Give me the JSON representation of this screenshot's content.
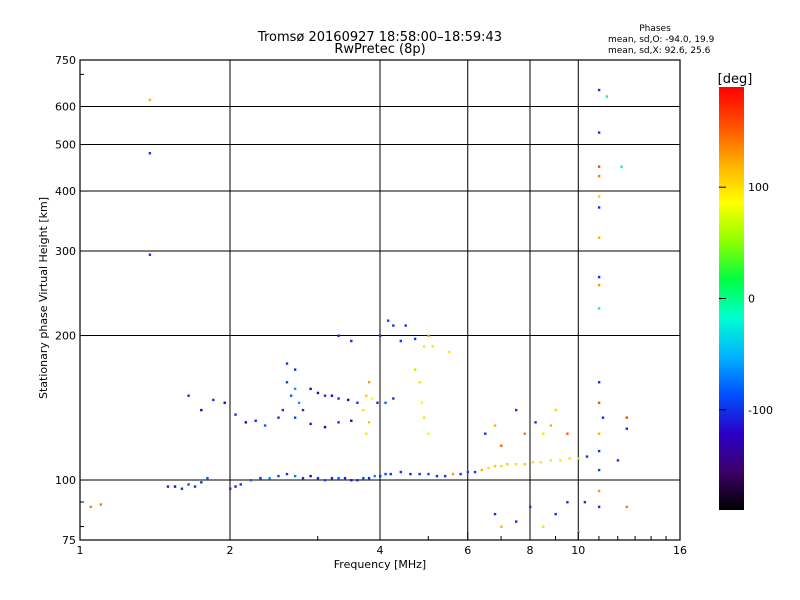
{
  "chart_data": {
    "type": "scatter",
    "title": "Tromsø 20160927 18:58:00–18:59:43",
    "subtitle": "RwPretec (8p)",
    "xlabel": "Frequency [MHz]",
    "ylabel": "Stationary phase Virtual Height [km]",
    "x_scale": "log",
    "y_scale": "log",
    "xlim": [
      1,
      16
    ],
    "ylim": [
      75,
      750
    ],
    "x_ticks": [
      1,
      2,
      4,
      6,
      8,
      10,
      16
    ],
    "y_ticks": [
      75,
      100,
      200,
      300,
      400,
      500,
      600,
      750
    ],
    "grid": true,
    "phase_box": {
      "title": "Phases",
      "line1": "mean, sd,O: -94.0, 19.9",
      "line2": "mean, sd,X:  92.6, 25.6"
    },
    "colorbar": {
      "label": "[deg]",
      "range": [
        -190,
        190
      ],
      "ticks": [
        -100,
        0,
        100
      ],
      "colors": [
        "#000000",
        "#3c0068",
        "#2a00c8",
        "#0050ff",
        "#00b4ff",
        "#00ffd0",
        "#00ff40",
        "#90ff00",
        "#ffff00",
        "#ffb000",
        "#ff5000",
        "#ff0000"
      ]
    },
    "color_by": "phase_deg",
    "series": [
      {
        "x": 1.05,
        "y": 88,
        "phase": 140
      },
      {
        "x": 1.1,
        "y": 89,
        "phase": 140
      },
      {
        "x": 1.38,
        "y": 620,
        "phase": 120
      },
      {
        "x": 1.38,
        "y": 480,
        "phase": -100
      },
      {
        "x": 1.38,
        "y": 295,
        "phase": -100
      },
      {
        "x": 1.5,
        "y": 97,
        "phase": -110
      },
      {
        "x": 1.55,
        "y": 97,
        "phase": -120
      },
      {
        "x": 1.6,
        "y": 96,
        "phase": -100
      },
      {
        "x": 1.65,
        "y": 98,
        "phase": -90
      },
      {
        "x": 1.7,
        "y": 97,
        "phase": -100
      },
      {
        "x": 1.75,
        "y": 99,
        "phase": -100
      },
      {
        "x": 1.8,
        "y": 101,
        "phase": -80
      },
      {
        "x": 1.65,
        "y": 150,
        "phase": -100
      },
      {
        "x": 1.75,
        "y": 140,
        "phase": -130
      },
      {
        "x": 1.85,
        "y": 147,
        "phase": -100
      },
      {
        "x": 1.95,
        "y": 145,
        "phase": -120
      },
      {
        "x": 2.05,
        "y": 137,
        "phase": -100
      },
      {
        "x": 2.15,
        "y": 132,
        "phase": -120
      },
      {
        "x": 2.25,
        "y": 133,
        "phase": -100
      },
      {
        "x": 2.35,
        "y": 130,
        "phase": -80
      },
      {
        "x": 2.5,
        "y": 135,
        "phase": -100
      },
      {
        "x": 2.7,
        "y": 135,
        "phase": -90
      },
      {
        "x": 2.9,
        "y": 131,
        "phase": -110
      },
      {
        "x": 3.1,
        "y": 129,
        "phase": -130
      },
      {
        "x": 3.3,
        "y": 132,
        "phase": -100
      },
      {
        "x": 3.5,
        "y": 133,
        "phase": -120
      },
      {
        "x": 2.6,
        "y": 175,
        "phase": -100
      },
      {
        "x": 2.6,
        "y": 160,
        "phase": -90
      },
      {
        "x": 2.7,
        "y": 170,
        "phase": -100
      },
      {
        "x": 2.65,
        "y": 150,
        "phase": -80
      },
      {
        "x": 2.75,
        "y": 145,
        "phase": -60
      },
      {
        "x": 2.55,
        "y": 140,
        "phase": -100
      },
      {
        "x": 2.7,
        "y": 155,
        "phase": -60
      },
      {
        "x": 2.8,
        "y": 140,
        "phase": -100
      },
      {
        "x": 2.9,
        "y": 155,
        "phase": -120
      },
      {
        "x": 3.0,
        "y": 152,
        "phase": -130
      },
      {
        "x": 3.1,
        "y": 150,
        "phase": -100
      },
      {
        "x": 3.2,
        "y": 150,
        "phase": -120
      },
      {
        "x": 3.3,
        "y": 148,
        "phase": -100
      },
      {
        "x": 3.45,
        "y": 147,
        "phase": -130
      },
      {
        "x": 3.6,
        "y": 145,
        "phase": -100
      },
      {
        "x": 3.75,
        "y": 150,
        "phase": 110
      },
      {
        "x": 3.85,
        "y": 148,
        "phase": 90
      },
      {
        "x": 3.95,
        "y": 145,
        "phase": -100
      },
      {
        "x": 4.1,
        "y": 145,
        "phase": -80
      },
      {
        "x": 4.25,
        "y": 148,
        "phase": -100
      },
      {
        "x": 3.7,
        "y": 140,
        "phase": 100
      },
      {
        "x": 3.8,
        "y": 132,
        "phase": 110
      },
      {
        "x": 3.75,
        "y": 125,
        "phase": 100
      },
      {
        "x": 3.8,
        "y": 160,
        "phase": 130
      },
      {
        "x": 4.15,
        "y": 215,
        "phase": -90
      },
      {
        "x": 4.25,
        "y": 210,
        "phase": -100
      },
      {
        "x": 4.5,
        "y": 210,
        "phase": -100
      },
      {
        "x": 4.0,
        "y": 200,
        "phase": -100
      },
      {
        "x": 3.3,
        "y": 200,
        "phase": -110
      },
      {
        "x": 3.5,
        "y": 195,
        "phase": -100
      },
      {
        "x": 4.4,
        "y": 195,
        "phase": -100
      },
      {
        "x": 4.7,
        "y": 197,
        "phase": -100
      },
      {
        "x": 4.9,
        "y": 190,
        "phase": 100
      },
      {
        "x": 5.0,
        "y": 200,
        "phase": 130
      },
      {
        "x": 5.1,
        "y": 190,
        "phase": 100
      },
      {
        "x": 5.5,
        "y": 185,
        "phase": 100
      },
      {
        "x": 4.7,
        "y": 170,
        "phase": 60
      },
      {
        "x": 4.8,
        "y": 160,
        "phase": 100
      },
      {
        "x": 4.85,
        "y": 145,
        "phase": 90
      },
      {
        "x": 4.9,
        "y": 135,
        "phase": 100
      },
      {
        "x": 5.0,
        "y": 125,
        "phase": 90
      },
      {
        "x": 2.0,
        "y": 96,
        "phase": -100
      },
      {
        "x": 2.05,
        "y": 97,
        "phase": -110
      },
      {
        "x": 2.1,
        "y": 98,
        "phase": -100
      },
      {
        "x": 2.2,
        "y": 100,
        "phase": -80
      },
      {
        "x": 2.3,
        "y": 101,
        "phase": -100
      },
      {
        "x": 2.4,
        "y": 101,
        "phase": -60
      },
      {
        "x": 2.5,
        "y": 102,
        "phase": -90
      },
      {
        "x": 2.6,
        "y": 103,
        "phase": -100
      },
      {
        "x": 2.7,
        "y": 102,
        "phase": -70
      },
      {
        "x": 2.8,
        "y": 101,
        "phase": -100
      },
      {
        "x": 2.9,
        "y": 102,
        "phase": -120
      },
      {
        "x": 3.0,
        "y": 101,
        "phase": -100
      },
      {
        "x": 3.1,
        "y": 100,
        "phase": -90
      },
      {
        "x": 3.2,
        "y": 101,
        "phase": -100
      },
      {
        "x": 3.3,
        "y": 101,
        "phase": -80
      },
      {
        "x": 3.4,
        "y": 101,
        "phase": -100
      },
      {
        "x": 3.5,
        "y": 100,
        "phase": -110
      },
      {
        "x": 3.6,
        "y": 100,
        "phase": -100
      },
      {
        "x": 3.7,
        "y": 101,
        "phase": -90
      },
      {
        "x": 3.8,
        "y": 101,
        "phase": -100
      },
      {
        "x": 3.9,
        "y": 102,
        "phase": -70
      },
      {
        "x": 4.0,
        "y": 102,
        "phase": -100
      },
      {
        "x": 4.1,
        "y": 103,
        "phase": -90
      },
      {
        "x": 4.2,
        "y": 103,
        "phase": -100
      },
      {
        "x": 4.4,
        "y": 104,
        "phase": -100
      },
      {
        "x": 4.6,
        "y": 103,
        "phase": -110
      },
      {
        "x": 4.8,
        "y": 103,
        "phase": -100
      },
      {
        "x": 5.0,
        "y": 103,
        "phase": -90
      },
      {
        "x": 5.2,
        "y": 102,
        "phase": -100
      },
      {
        "x": 5.4,
        "y": 102,
        "phase": -100
      },
      {
        "x": 5.6,
        "y": 103,
        "phase": 130
      },
      {
        "x": 5.8,
        "y": 103,
        "phase": -100
      },
      {
        "x": 6.0,
        "y": 104,
        "phase": -90
      },
      {
        "x": 6.2,
        "y": 104,
        "phase": -100
      },
      {
        "x": 6.4,
        "y": 105,
        "phase": 120
      },
      {
        "x": 6.6,
        "y": 106,
        "phase": 100
      },
      {
        "x": 6.8,
        "y": 107,
        "phase": 110
      },
      {
        "x": 7.0,
        "y": 107,
        "phase": 100
      },
      {
        "x": 7.2,
        "y": 108,
        "phase": 110
      },
      {
        "x": 7.5,
        "y": 108,
        "phase": 100
      },
      {
        "x": 7.8,
        "y": 108,
        "phase": 110
      },
      {
        "x": 8.1,
        "y": 109,
        "phase": 100
      },
      {
        "x": 8.4,
        "y": 109,
        "phase": 100
      },
      {
        "x": 8.8,
        "y": 110,
        "phase": 100
      },
      {
        "x": 9.2,
        "y": 110,
        "phase": 100
      },
      {
        "x": 9.6,
        "y": 111,
        "phase": 100
      },
      {
        "x": 10.0,
        "y": 111,
        "phase": 60
      },
      {
        "x": 10.4,
        "y": 112,
        "phase": -100
      },
      {
        "x": 6.5,
        "y": 125,
        "phase": -100
      },
      {
        "x": 6.8,
        "y": 130,
        "phase": 120
      },
      {
        "x": 7.0,
        "y": 118,
        "phase": 150
      },
      {
        "x": 7.5,
        "y": 140,
        "phase": -100
      },
      {
        "x": 7.8,
        "y": 125,
        "phase": 140
      },
      {
        "x": 8.2,
        "y": 132,
        "phase": -100
      },
      {
        "x": 8.5,
        "y": 125,
        "phase": 100
      },
      {
        "x": 8.8,
        "y": 130,
        "phase": 120
      },
      {
        "x": 9.0,
        "y": 140,
        "phase": 110
      },
      {
        "x": 9.5,
        "y": 125,
        "phase": 150
      },
      {
        "x": 6.8,
        "y": 85,
        "phase": -100
      },
      {
        "x": 7.0,
        "y": 80,
        "phase": 120
      },
      {
        "x": 7.5,
        "y": 82,
        "phase": -100
      },
      {
        "x": 8.0,
        "y": 88,
        "phase": -100
      },
      {
        "x": 8.5,
        "y": 80,
        "phase": 100
      },
      {
        "x": 9.0,
        "y": 85,
        "phase": -100
      },
      {
        "x": 9.5,
        "y": 90,
        "phase": -100
      },
      {
        "x": 10.0,
        "y": 78,
        "phase": 140
      },
      {
        "x": 10.3,
        "y": 90,
        "phase": -100
      },
      {
        "x": 11.0,
        "y": 650,
        "phase": -100
      },
      {
        "x": 11.4,
        "y": 630,
        "phase": 0
      },
      {
        "x": 11.0,
        "y": 530,
        "phase": -100
      },
      {
        "x": 11.0,
        "y": 450,
        "phase": 160
      },
      {
        "x": 11.0,
        "y": 430,
        "phase": 140
      },
      {
        "x": 11.0,
        "y": 390,
        "phase": 110
      },
      {
        "x": 11.0,
        "y": 370,
        "phase": -100
      },
      {
        "x": 11.0,
        "y": 320,
        "phase": 120
      },
      {
        "x": 11.0,
        "y": 265,
        "phase": -100
      },
      {
        "x": 11.0,
        "y": 255,
        "phase": 130
      },
      {
        "x": 11.0,
        "y": 228,
        "phase": 0
      },
      {
        "x": 12.2,
        "y": 450,
        "phase": 0
      },
      {
        "x": 11.0,
        "y": 160,
        "phase": -100
      },
      {
        "x": 11.0,
        "y": 145,
        "phase": 160
      },
      {
        "x": 11.2,
        "y": 135,
        "phase": -100
      },
      {
        "x": 11.0,
        "y": 125,
        "phase": 120
      },
      {
        "x": 11.0,
        "y": 115,
        "phase": -100
      },
      {
        "x": 11.0,
        "y": 105,
        "phase": -90
      },
      {
        "x": 11.0,
        "y": 95,
        "phase": 130
      },
      {
        "x": 11.0,
        "y": 88,
        "phase": -100
      },
      {
        "x": 12.5,
        "y": 135,
        "phase": 160
      },
      {
        "x": 12.5,
        "y": 128,
        "phase": -100
      },
      {
        "x": 12.5,
        "y": 88,
        "phase": 140
      },
      {
        "x": 12.0,
        "y": 110,
        "phase": -100
      }
    ]
  }
}
